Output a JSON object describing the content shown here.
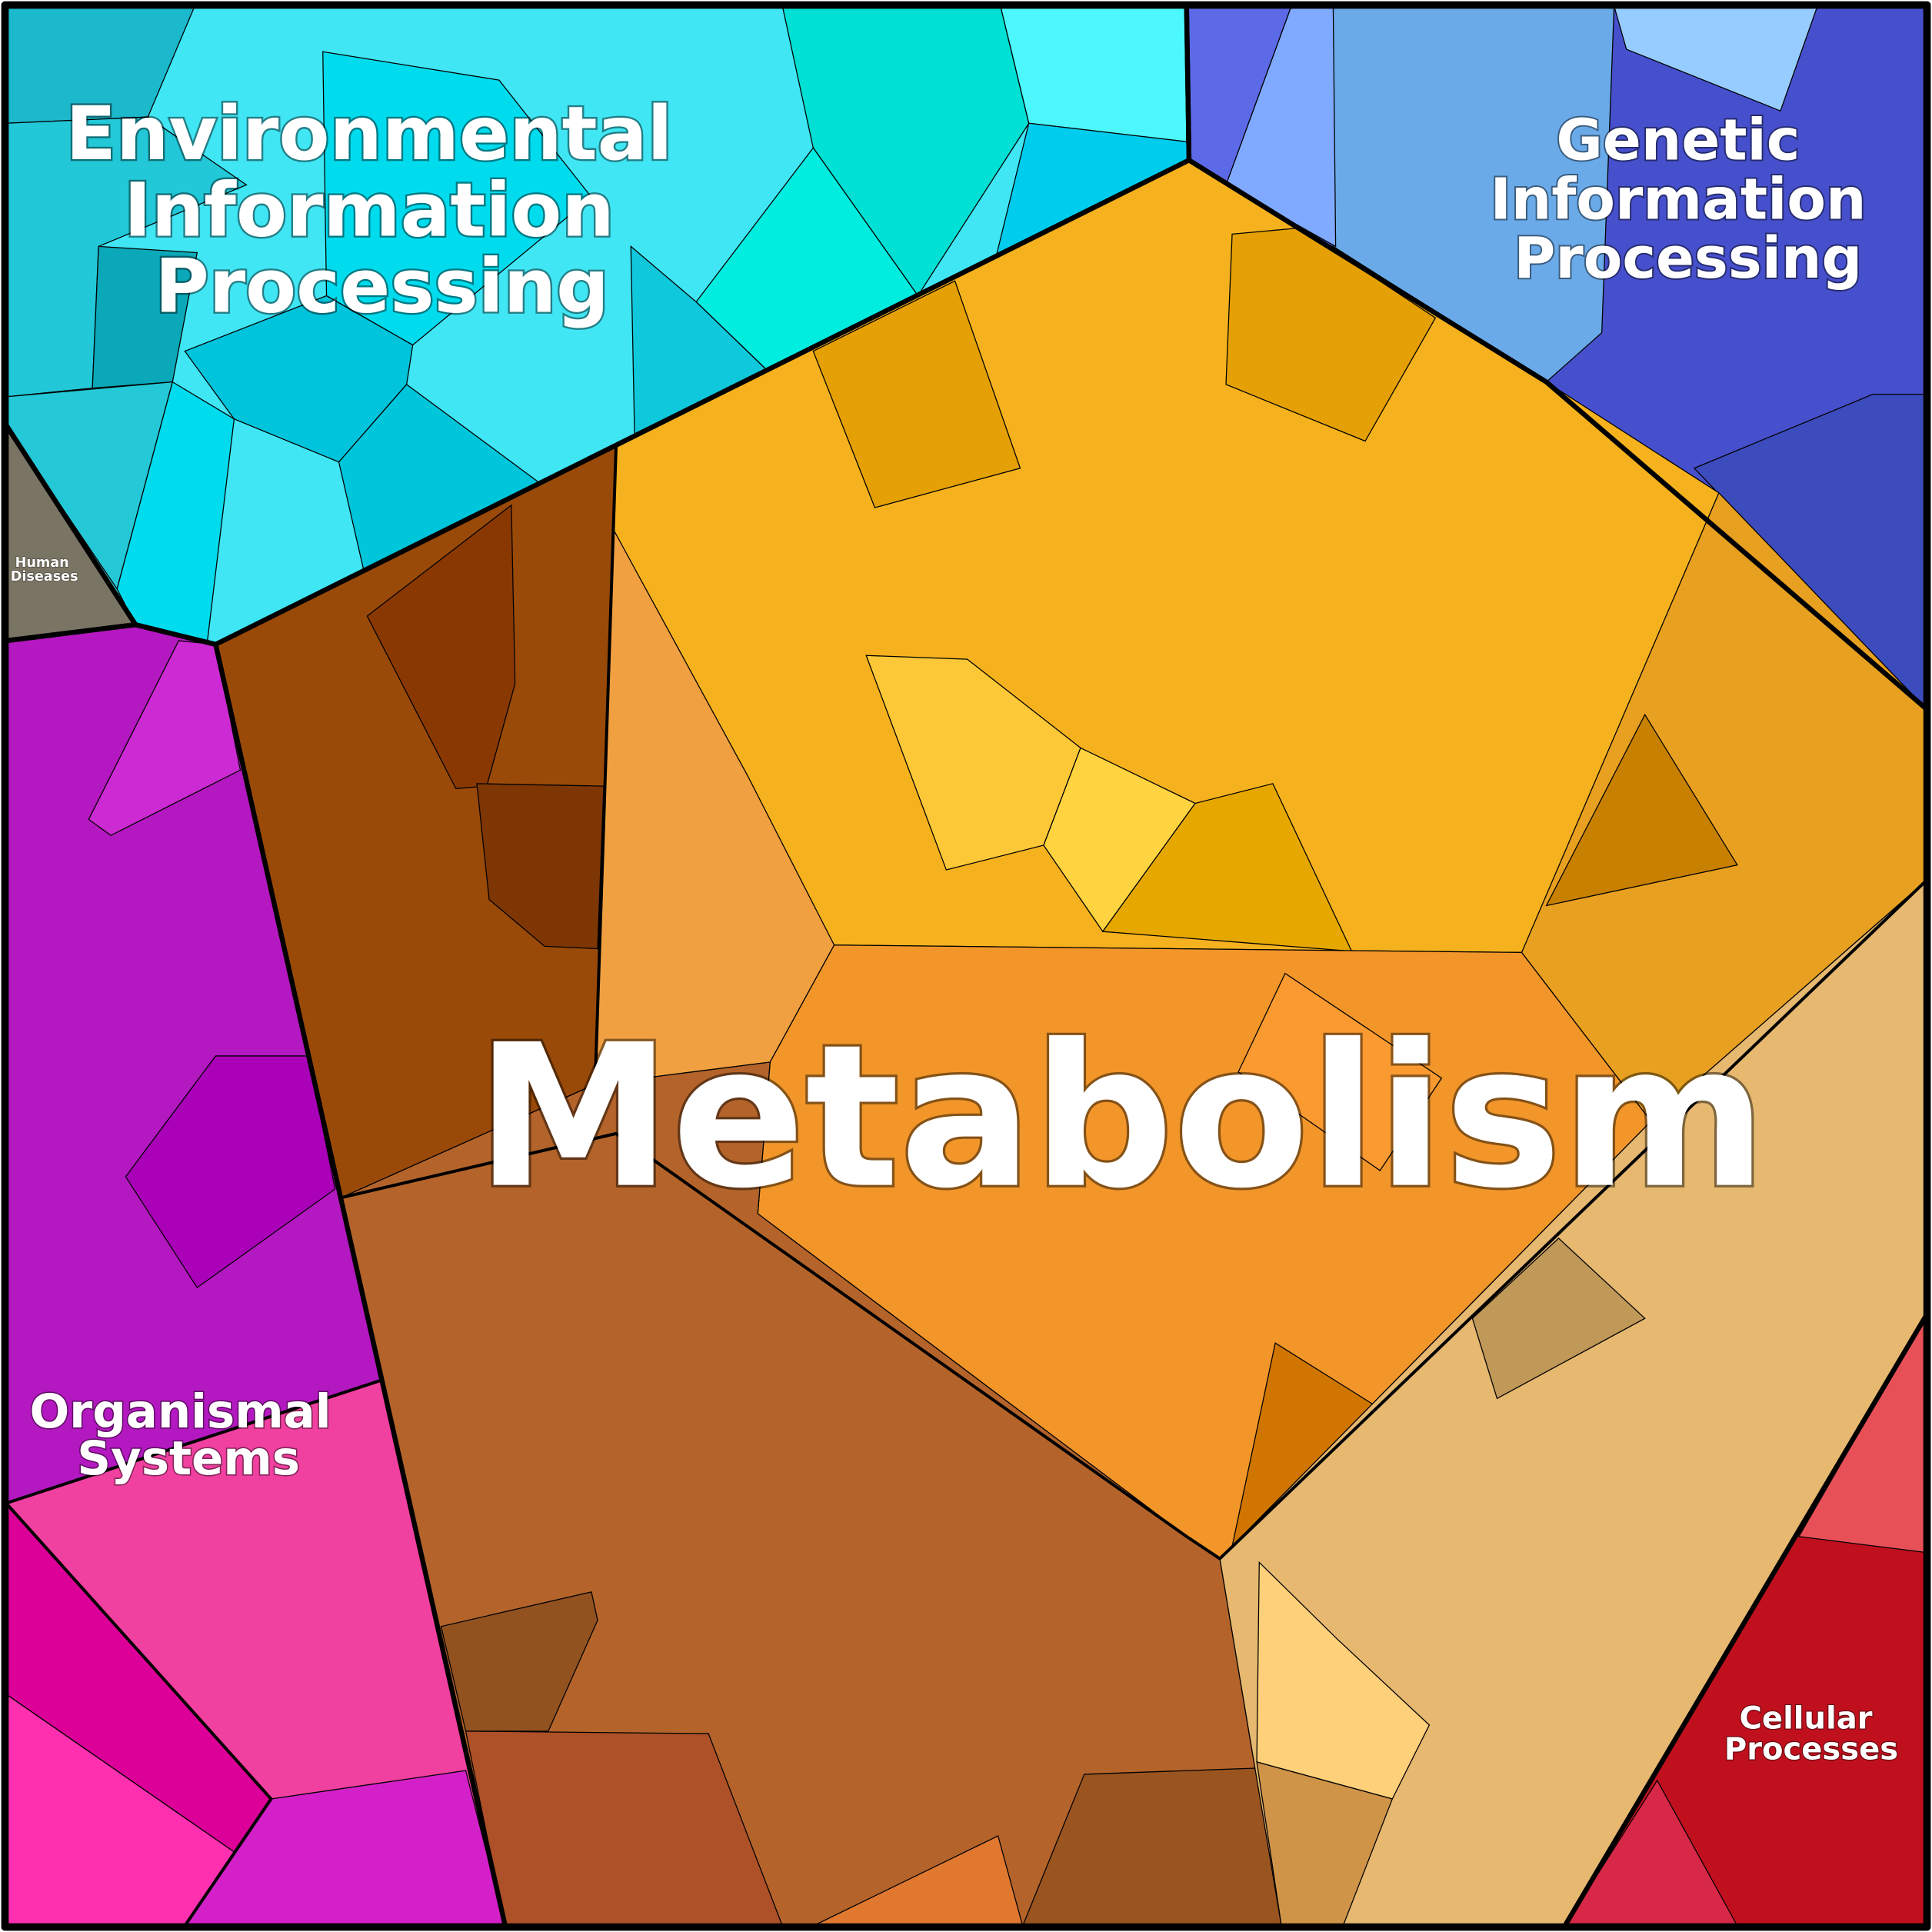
{
  "regions": [
    {
      "label_lines": [
        "Environmental",
        "Information",
        "Processing"
      ]
    },
    {
      "label_lines": [
        "Genetic",
        "Information",
        "Processing"
      ]
    },
    {
      "label_lines": [
        "Human",
        "Diseases"
      ]
    },
    {
      "label_lines": [
        "Metabolism"
      ]
    },
    {
      "label_lines": [
        "Organismal",
        "Systems"
      ]
    },
    {
      "label_lines": [
        "Cellular",
        "Processes"
      ]
    }
  ]
}
